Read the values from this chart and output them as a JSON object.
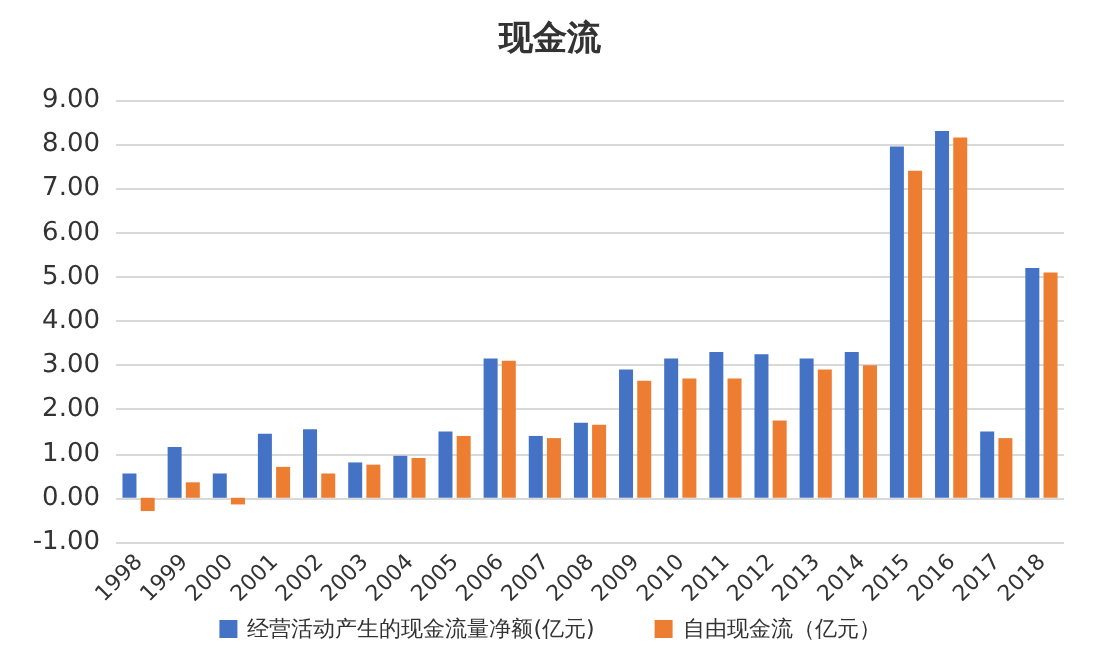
{
  "chart_data": {
    "type": "bar",
    "title": "现金流",
    "categories": [
      "1998",
      "1999",
      "2000",
      "2001",
      "2002",
      "2003",
      "2004",
      "2005",
      "2006",
      "2007",
      "2008",
      "2009",
      "2010",
      "2011",
      "2012",
      "2013",
      "2014",
      "2015",
      "2016",
      "2017",
      "2018"
    ],
    "series": [
      {
        "name": "经营活动产生的现金流量净额(亿元)",
        "color": "#4472c4",
        "values": [
          0.55,
          1.15,
          0.55,
          1.45,
          1.55,
          0.8,
          0.95,
          1.5,
          3.15,
          1.4,
          1.7,
          2.9,
          3.15,
          3.3,
          3.25,
          3.15,
          3.3,
          7.95,
          8.3,
          1.5,
          5.2
        ]
      },
      {
        "name": "自由现金流（亿元）",
        "color": "#ed7d31",
        "values": [
          -0.3,
          0.35,
          -0.15,
          0.7,
          0.55,
          0.75,
          0.9,
          1.4,
          3.1,
          1.35,
          1.65,
          2.65,
          2.7,
          2.7,
          1.75,
          2.9,
          3.0,
          7.4,
          8.15,
          1.35,
          5.1
        ]
      }
    ],
    "ylim": [
      -1,
      9
    ],
    "yticks": [
      {
        "value": -1,
        "label": "-1.00"
      },
      {
        "value": 0,
        "label": "0.00"
      },
      {
        "value": 1,
        "label": "1.00"
      },
      {
        "value": 2,
        "label": "2.00"
      },
      {
        "value": 3,
        "label": "3.00"
      },
      {
        "value": 4,
        "label": "4.00"
      },
      {
        "value": 5,
        "label": "5.00"
      },
      {
        "value": 6,
        "label": "6.00"
      },
      {
        "value": 7,
        "label": "7.00"
      },
      {
        "value": 8,
        "label": "8.00"
      },
      {
        "value": 9,
        "label": "9.00"
      }
    ],
    "grid": "y",
    "legend": "bottom"
  }
}
